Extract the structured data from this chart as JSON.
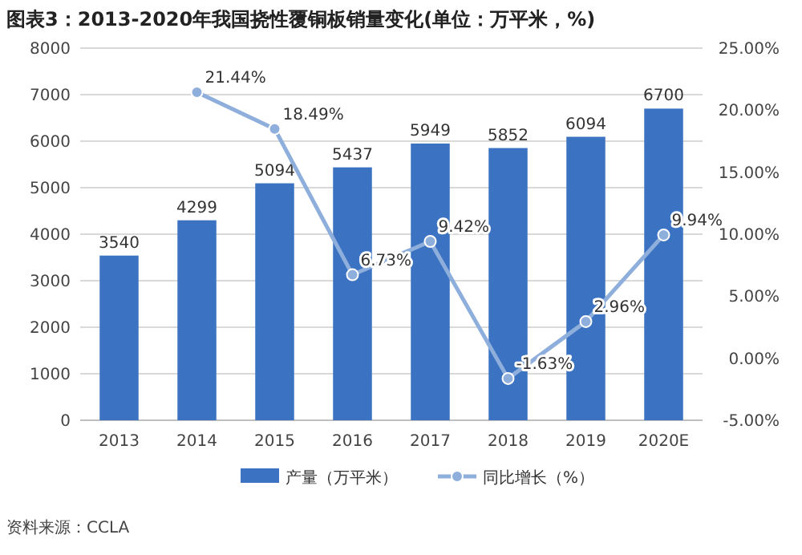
{
  "chart_data": {
    "type": "bar",
    "title": "图表3：2013-2020年我国挠性覆铜板销量变化(单位：万平米，%)",
    "categories": [
      "2013",
      "2014",
      "2015",
      "2016",
      "2017",
      "2018",
      "2019",
      "2020E"
    ],
    "series": [
      {
        "name": "产量（万平米）",
        "color": "#3b73c2",
        "values": [
          3540,
          4299,
          5094,
          5437,
          5949,
          5852,
          6094,
          6700
        ],
        "value_labels": [
          "3540",
          "4299",
          "5094",
          "5437",
          "5949",
          "5852",
          "6094",
          "6700"
        ]
      },
      {
        "name": "同比增长（%）",
        "type": "line",
        "axis": "y2",
        "color": "#8eaedb",
        "marker": "circle",
        "values": [
          null,
          21.44,
          18.49,
          6.73,
          9.42,
          -1.63,
          2.96,
          9.94
        ],
        "value_labels": [
          null,
          "21.44%",
          "18.49%",
          "6.73%",
          "9.42%",
          "-1.63%",
          "2.96%",
          "9.94%"
        ]
      }
    ],
    "ylim": [
      0,
      8000
    ],
    "yticks": [
      0,
      1000,
      2000,
      3000,
      4000,
      5000,
      6000,
      7000,
      8000
    ],
    "y2lim": [
      -5,
      25
    ],
    "y2ticks": [
      {
        "value": -5,
        "label": "-5.00%"
      },
      {
        "value": 0,
        "label": "0.00%"
      },
      {
        "value": 5,
        "label": "5.00%"
      },
      {
        "value": 10,
        "label": "10.00%"
      },
      {
        "value": 15,
        "label": "15.00%"
      },
      {
        "value": 20,
        "label": "20.00%"
      },
      {
        "value": 25,
        "label": "25.00%"
      }
    ],
    "grid": "y",
    "legend": "bottom",
    "annotations": [
      "资料来源：CCLA"
    ]
  }
}
